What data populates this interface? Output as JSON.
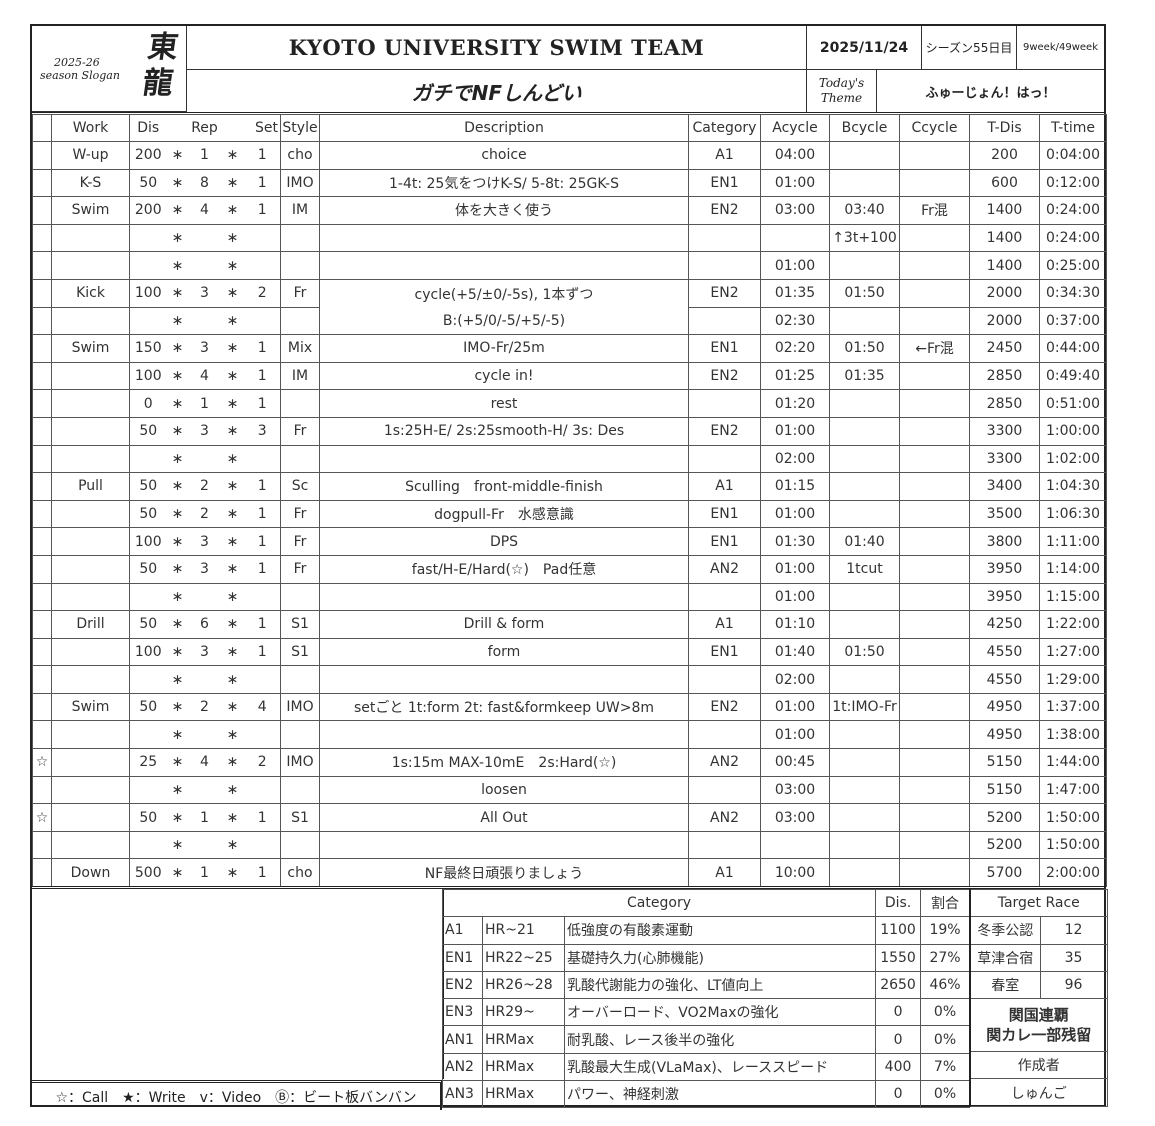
{
  "header": {
    "season": "2025-26",
    "slogan_label": "season Slogan",
    "slogan_calligraphy": "東龍",
    "title": "KYOTO UNIVERSITY SWIM TEAM",
    "date": "2025/11/24",
    "season_day": "シーズン55日目",
    "week": "9week/49week",
    "theme_label_1": "Today's",
    "theme_label_2": "Theme",
    "theme": "ガチでNFしんどい",
    "theme_sub": "ふゅーじょん！はっ！"
  },
  "columns": [
    "Work",
    "Dis",
    "Rep",
    "Set",
    "Style",
    "Description",
    "Category",
    "Acycle",
    "Bcycle",
    "Ccycle",
    "T-Dis",
    "T-time"
  ],
  "rows": [
    [
      "",
      "W-up",
      "200",
      "1",
      "1",
      "cho",
      "choice",
      "A1",
      "04:00",
      "",
      "",
      "200",
      "0:04:00"
    ],
    [
      "",
      "K-S",
      "50",
      "8",
      "1",
      "IMO",
      "1-4t: 25気をつけK-S/ 5-8t: 25GK-S",
      "EN1",
      "01:00",
      "",
      "",
      "600",
      "0:12:00"
    ],
    [
      "",
      "Swim",
      "200",
      "4",
      "1",
      "IM",
      "体を大きく使う",
      "EN2",
      "03:00",
      "03:40",
      "Fr混",
      "1400",
      "0:24:00"
    ],
    [
      "",
      "",
      "",
      "",
      "",
      "",
      "",
      "",
      "",
      "↑3t+100",
      "",
      "1400",
      "0:24:00"
    ],
    [
      "",
      "",
      "",
      "",
      "",
      "",
      "",
      "",
      "01:00",
      "",
      "",
      "1400",
      "0:25:00"
    ],
    [
      "",
      "Kick",
      "100",
      "3",
      "2",
      "Fr",
      "cycle(+5/±0/-5s), 1本ずつ",
      "EN2",
      "01:35",
      "01:50",
      "",
      "2000",
      "0:34:30"
    ],
    [
      "",
      "",
      "",
      "",
      "",
      "",
      "B:(+5/0/-5/+5/-5)",
      "",
      "02:30",
      "",
      "",
      "2000",
      "0:37:00"
    ],
    [
      "",
      "Swim",
      "150",
      "3",
      "1",
      "Mix",
      "IMO-Fr/25m",
      "EN1",
      "02:20",
      "01:50",
      "←Fr混",
      "2450",
      "0:44:00"
    ],
    [
      "",
      "",
      "100",
      "4",
      "1",
      "IM",
      "cycle in!",
      "EN2",
      "01:25",
      "01:35",
      "",
      "2850",
      "0:49:40"
    ],
    [
      "",
      "",
      "0",
      "1",
      "1",
      "",
      "rest",
      "",
      "01:20",
      "",
      "",
      "2850",
      "0:51:00"
    ],
    [
      "",
      "",
      "50",
      "3",
      "3",
      "Fr",
      "1s:25H-E/ 2s:25smooth-H/ 3s: Des",
      "EN2",
      "01:00",
      "",
      "",
      "3300",
      "1:00:00"
    ],
    [
      "",
      "",
      "",
      "",
      "",
      "",
      "",
      "",
      "02:00",
      "",
      "",
      "3300",
      "1:02:00"
    ],
    [
      "",
      "Pull",
      "50",
      "2",
      "1",
      "Sc",
      "Sculling　front-middle-finish",
      "A1",
      "01:15",
      "",
      "",
      "3400",
      "1:04:30"
    ],
    [
      "",
      "",
      "50",
      "2",
      "1",
      "Fr",
      "dogpull-Fr　水感意識",
      "EN1",
      "01:00",
      "",
      "",
      "3500",
      "1:06:30"
    ],
    [
      "",
      "",
      "100",
      "3",
      "1",
      "Fr",
      "DPS",
      "EN1",
      "01:30",
      "01:40",
      "",
      "3800",
      "1:11:00"
    ],
    [
      "",
      "",
      "50",
      "3",
      "1",
      "Fr",
      "fast/H-E/Hard(☆)　Pad任意",
      "AN2",
      "01:00",
      "1tcut",
      "",
      "3950",
      "1:14:00"
    ],
    [
      "",
      "",
      "",
      "",
      "",
      "",
      "",
      "",
      "01:00",
      "",
      "",
      "3950",
      "1:15:00"
    ],
    [
      "",
      "Drill",
      "50",
      "6",
      "1",
      "S1",
      "Drill & form",
      "A1",
      "01:10",
      "",
      "",
      "4250",
      "1:22:00"
    ],
    [
      "",
      "",
      "100",
      "3",
      "1",
      "S1",
      "form",
      "EN1",
      "01:40",
      "01:50",
      "",
      "4550",
      "1:27:00"
    ],
    [
      "",
      "",
      "",
      "",
      "",
      "",
      "",
      "",
      "02:00",
      "",
      "",
      "4550",
      "1:29:00"
    ],
    [
      "",
      "Swim",
      "50",
      "2",
      "4",
      "IMO",
      "setごと  1t:form  2t: fast&formkeep  UW>8m",
      "EN2",
      "01:00",
      "1t:IMO-Fr",
      "",
      "4950",
      "1:37:00"
    ],
    [
      "",
      "",
      "",
      "",
      "",
      "",
      "",
      "",
      "01:00",
      "",
      "",
      "4950",
      "1:38:00"
    ],
    [
      "☆",
      "",
      "25",
      "4",
      "2",
      "IMO",
      "1s:15m MAX-10mE　2s:Hard(☆)",
      "AN2",
      "00:45",
      "",
      "",
      "5150",
      "1:44:00"
    ],
    [
      "",
      "",
      "",
      "",
      "",
      "",
      "loosen",
      "",
      "03:00",
      "",
      "",
      "5150",
      "1:47:00"
    ],
    [
      "☆",
      "",
      "50",
      "1",
      "1",
      "S1",
      "All Out",
      "AN2",
      "03:00",
      "",
      "",
      "5200",
      "1:50:00"
    ],
    [
      "",
      "",
      "",
      "",
      "",
      "",
      "",
      "",
      "",
      "",
      "",
      "5200",
      "1:50:00"
    ],
    [
      "",
      "Down",
      "500",
      "1",
      "1",
      "cho",
      "NF最終日頑張りましょう",
      "A1",
      "10:00",
      "",
      "",
      "5700",
      "2:00:00"
    ]
  ],
  "multiply_symbol": "∗",
  "merged_desc_rows": [
    6
  ],
  "category_table": {
    "header": [
      "Category",
      "Dis.",
      "割合"
    ],
    "rows": [
      [
        "A1",
        "HR~21",
        "低強度の有酸素運動",
        "1100",
        "19%"
      ],
      [
        "EN1",
        "HR22~25",
        "基礎持久力(心肺機能)",
        "1550",
        "27%"
      ],
      [
        "EN2",
        "HR26~28",
        "乳酸代謝能力の強化、LT値向上",
        "2650",
        "46%"
      ],
      [
        "EN3",
        "HR29~",
        "オーバーロード、VO2Maxの強化",
        "0",
        "0%"
      ],
      [
        "AN1",
        "HRMax",
        "耐乳酸、レース後半の強化",
        "0",
        "0%"
      ],
      [
        "AN2",
        "HRMax",
        "乳酸最大生成(VLaMax)、レーススピード",
        "400",
        "7%"
      ],
      [
        "AN3",
        "HRMax",
        "パワー、神経刺激",
        "0",
        "0%"
      ]
    ]
  },
  "target_race": {
    "header": "Target Race",
    "races": [
      [
        "冬季公認",
        "12"
      ],
      [
        "草津合宿",
        "35"
      ],
      [
        "春室",
        "96"
      ]
    ],
    "motto_1": "関国連覇",
    "motto_2": "関カレ一部残留",
    "author_label": "作成者",
    "author": "しゅんご"
  },
  "legend": "☆：Call　★：Write　v：Video　Ⓑ：ビート板バンバン"
}
